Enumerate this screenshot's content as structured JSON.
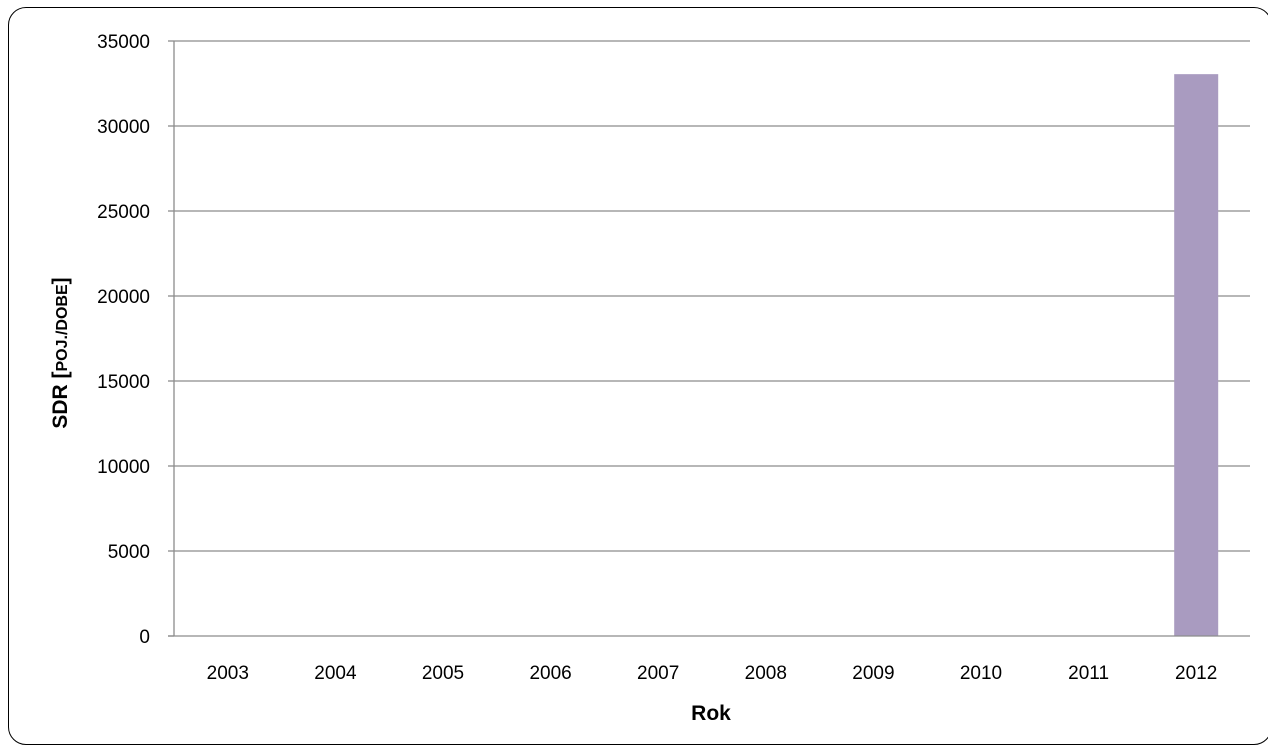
{
  "chart_data": {
    "type": "bar",
    "title": "",
    "xlabel": "Rok",
    "ylabel": "SDR [POJ./DOBE]",
    "ylabel_main": "SDR [",
    "ylabel_unit": "POJ./DOBE",
    "ylabel_close": "]",
    "categories": [
      "2003",
      "2004",
      "2005",
      "2006",
      "2007",
      "2008",
      "2009",
      "2010",
      "2011",
      "2012"
    ],
    "values": [
      0,
      0,
      0,
      0,
      0,
      0,
      0,
      0,
      0,
      33050
    ],
    "ylim": [
      0,
      35000
    ],
    "yticks": [
      0,
      5000,
      10000,
      15000,
      20000,
      25000,
      30000,
      35000
    ],
    "grid": true,
    "legend": "none",
    "bar_color": "#A99BC0",
    "grid_color": "#8C8C8C",
    "axis_color": "#8C8C8C"
  }
}
